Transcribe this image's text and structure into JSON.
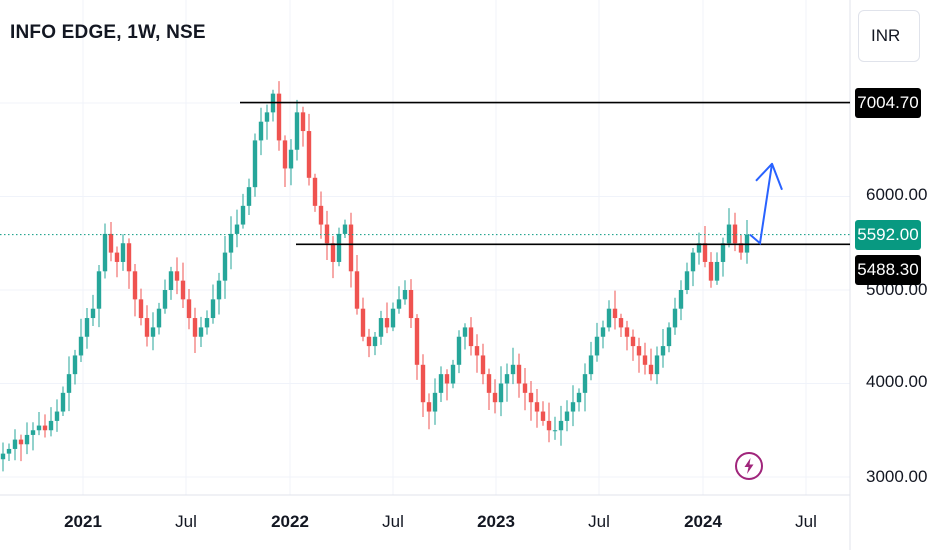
{
  "header": {
    "title": "INFO EDGE, 1W, NSE",
    "currency": "INR"
  },
  "colors": {
    "up": "#26a69a",
    "down": "#ef5350",
    "hline": "#000000",
    "current": "#089981",
    "arrow": "#2962ff",
    "grid": "#f0f3fa"
  },
  "price_axis": {
    "ticks": [
      "7004.70",
      "6000.00",
      "5592.00",
      "5488.30",
      "5000.00",
      "4000.00",
      "3000.00"
    ]
  },
  "time_axis": {
    "ticks": [
      {
        "label": "2021",
        "year": true
      },
      {
        "label": "Jul",
        "year": false
      },
      {
        "label": "2022",
        "year": true
      },
      {
        "label": "Jul",
        "year": false
      },
      {
        "label": "2023",
        "year": true
      },
      {
        "label": "Jul",
        "year": false
      },
      {
        "label": "2024",
        "year": true
      },
      {
        "label": "Jul",
        "year": false
      }
    ]
  },
  "levels": {
    "resistance": "7004.70",
    "support": "5488.30",
    "current": "5592.00"
  },
  "chart_data": {
    "type": "candlestick",
    "title": "INFO EDGE, 1W, NSE",
    "symbol": "INFO EDGE",
    "interval": "1W",
    "exchange": "NSE",
    "currency": "INR",
    "y_range": [
      2850,
      7900
    ],
    "horizontal_lines": [
      7004.7,
      5488.3
    ],
    "current_price": 5592.0,
    "projection_arrow": {
      "from_price": 5592,
      "via_price": 5500,
      "to_price": 6350,
      "direction": "up"
    },
    "weekly_closes_approx": [
      3250,
      3300,
      3400,
      3350,
      3450,
      3500,
      3550,
      3500,
      3600,
      3700,
      3900,
      4100,
      4300,
      4500,
      4700,
      4800,
      5200,
      5600,
      5400,
      5300,
      5500,
      5200,
      4900,
      4700,
      4500,
      4600,
      4800,
      5000,
      5200,
      5100,
      4900,
      4700,
      4500,
      4600,
      4700,
      4900,
      5100,
      5400,
      5600,
      5700,
      5900,
      6100,
      6600,
      6800,
      6900,
      7100,
      6600,
      6300,
      6500,
      6900,
      6700,
      6200,
      5900,
      5700,
      5500,
      5300,
      5600,
      5700,
      5200,
      4800,
      4500,
      4400,
      4500,
      4700,
      4600,
      4800,
      4900,
      5000,
      4700,
      4200,
      3800,
      3700,
      3900,
      4100,
      4000,
      4200,
      4500,
      4600,
      4400,
      4300,
      4100,
      3900,
      3800,
      4000,
      4100,
      4200,
      4000,
      3900,
      3800,
      3700,
      3600,
      3500,
      3500,
      3600,
      3700,
      3800,
      3900,
      4100,
      4300,
      4500,
      4600,
      4800,
      4700,
      4600,
      4500,
      4400,
      4300,
      4200,
      4100,
      4300,
      4400,
      4600,
      4800,
      5000,
      5200,
      5400,
      5500,
      5300,
      5100,
      5300,
      5500,
      5700,
      5500,
      5400,
      5592
    ]
  }
}
